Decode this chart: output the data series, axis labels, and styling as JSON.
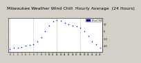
{
  "title": "Milwaukee Weather Wind Chill  Hourly Average  (24 Hours)",
  "hours": [
    0,
    1,
    2,
    3,
    4,
    5,
    6,
    7,
    8,
    9,
    10,
    11,
    12,
    13,
    14,
    15,
    16,
    17,
    18,
    19,
    20,
    21,
    22,
    23
  ],
  "wind_chill": [
    -24,
    -22,
    -22,
    -21,
    -20,
    -19,
    -18,
    -14,
    -8,
    0,
    8,
    13,
    15,
    14,
    12,
    10,
    8,
    7,
    5,
    0,
    -6,
    -14,
    -18,
    -22
  ],
  "dot_color": "#0000ff",
  "bg_color": "#d4d0c8",
  "plot_bg": "#ffffff",
  "grid_color": "#888888",
  "ylim": [
    -28,
    18
  ],
  "ytick_vals": [
    10,
    0,
    -10,
    -20
  ],
  "ytick_labels": [
    "10",
    "0",
    "-10",
    "-20"
  ],
  "legend_label": "Wind Chill",
  "legend_color": "#0000cc",
  "title_color": "#000000",
  "title_fontsize": 4.5,
  "dot_size": 1.2,
  "grid_interval": 6
}
